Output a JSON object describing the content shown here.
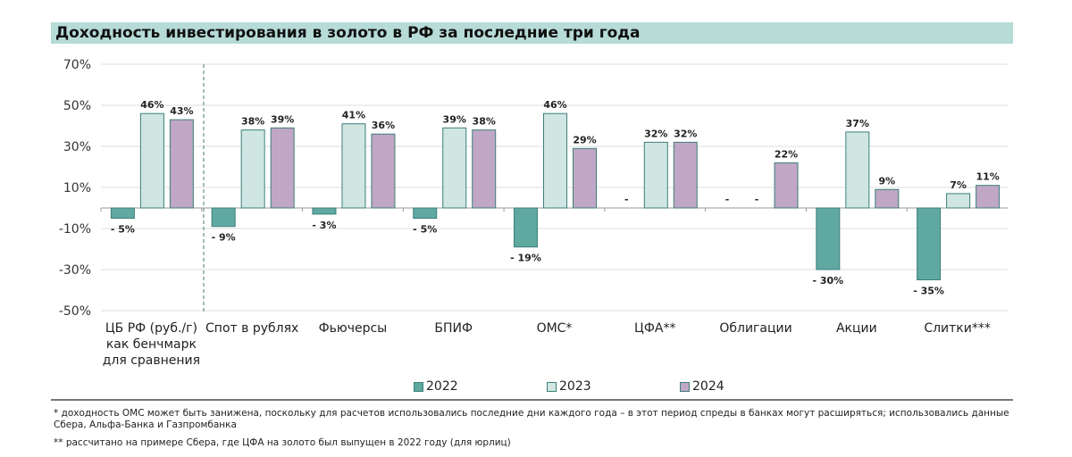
{
  "chart_data": {
    "type": "bar",
    "title": "Доходность инвестирования в золото в РФ за последние три года",
    "categories": [
      "ЦБ РФ (руб./г)\nкак бенчмарк\nдля сравнения",
      "Спот в рублях",
      "Фьючерсы",
      "БПИФ",
      "ОМС*",
      "ЦФА**",
      "Облигации",
      "Акции",
      "Слитки***"
    ],
    "series": [
      {
        "name": "2022",
        "color": "#5fa9a1",
        "values": [
          -5,
          -9,
          -3,
          -5,
          -19,
          null,
          null,
          -30,
          -35
        ]
      },
      {
        "name": "2023",
        "color": "#cfe6e3",
        "values": [
          46,
          38,
          41,
          39,
          46,
          32,
          null,
          37,
          7
        ]
      },
      {
        "name": "2024",
        "color": "#bfa7c5",
        "values": [
          43,
          39,
          36,
          38,
          29,
          32,
          22,
          9,
          11
        ]
      }
    ],
    "missing_label": "-",
    "yticks": [
      70,
      50,
      30,
      10,
      -10,
      -30,
      -50
    ],
    "ylim": [
      -50,
      70
    ],
    "grid": true,
    "legend_position": "bottom"
  },
  "notes": [
    "* доходность ОМС может быть занижена, поскольку для расчетов использовались последние дни каждого года – в этот период спреды в банках могут расширяться; использовались данные Сбера, Альфа-Банка и Газпромбанка",
    "** рассчитано на примере Сбера, где ЦФА на золото был выпущен в 2022 году (для юрлиц)"
  ]
}
